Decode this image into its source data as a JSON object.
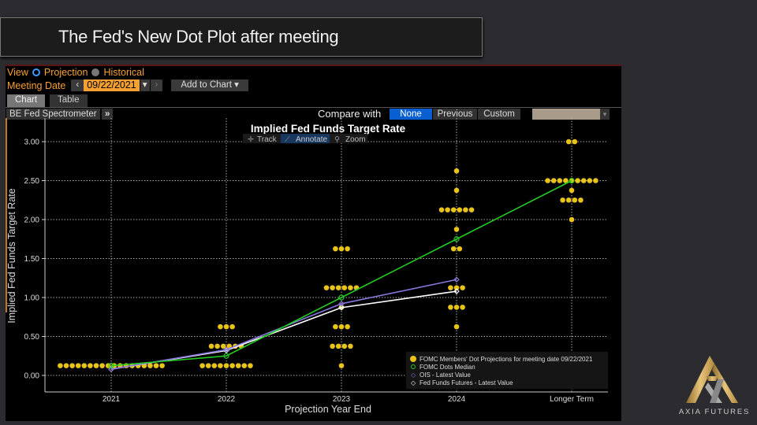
{
  "slide": {
    "title": "The Fed's New Dot Plot after meeting",
    "logo_text": "AXIA FUTURES"
  },
  "toolbar": {
    "view_label": "View",
    "projection_label": "Projection",
    "historical_label": "Historical",
    "meeting_date_label": "Meeting Date",
    "meeting_date": "09/22/2021",
    "prev_icon": "‹",
    "next_icon": "›",
    "dropdown_icon": "▾",
    "add_to_chart": "Add to Chart ▾",
    "tabs": [
      "Chart",
      "Table"
    ],
    "source": "BE Fed Spectrometer",
    "expand_icon": "»",
    "compare_label": "Compare with",
    "compare_options": [
      "None",
      "Previous",
      "Custom"
    ],
    "compare_selected": "None"
  },
  "chart_tools": {
    "track": "Track",
    "annotate": "Annotate",
    "zoom": "Zoom"
  },
  "colors": {
    "dots": "#e8c31a",
    "median": "#22cc22",
    "ois": "#8877dd",
    "fff": "#ffffff",
    "accent": "#f5a030"
  },
  "chart_data": {
    "type": "scatter",
    "title": "Implied Fed Funds Target Rate",
    "xlabel": "Projection Year End",
    "ylabel": "Implied Fed Funds Target Rate",
    "categories": [
      "2021",
      "2022",
      "2023",
      "2024",
      "Longer Term"
    ],
    "ylim": [
      -0.25,
      3.3
    ],
    "yticks": [
      "0.00",
      "0.50",
      "1.00",
      "1.50",
      "2.00",
      "2.50",
      "3.00"
    ],
    "ytick_values": [
      0,
      0.5,
      1,
      1.5,
      2,
      2.5,
      3
    ],
    "grid": true,
    "dots": [
      [
        {
          "rate": 0.125,
          "count": 18
        }
      ],
      [
        {
          "rate": 0.125,
          "count": 9
        },
        {
          "rate": 0.375,
          "count": 6
        },
        {
          "rate": 0.625,
          "count": 3
        }
      ],
      [
        {
          "rate": 0.125,
          "count": 1
        },
        {
          "rate": 0.375,
          "count": 4
        },
        {
          "rate": 0.625,
          "count": 3
        },
        {
          "rate": 0.875,
          "count": 1
        },
        {
          "rate": 1.125,
          "count": 6
        },
        {
          "rate": 1.625,
          "count": 3
        }
      ],
      [
        {
          "rate": 0.625,
          "count": 1
        },
        {
          "rate": 0.875,
          "count": 3
        },
        {
          "rate": 1.125,
          "count": 3
        },
        {
          "rate": 1.625,
          "count": 2
        },
        {
          "rate": 1.875,
          "count": 1
        },
        {
          "rate": 2.125,
          "count": 6
        },
        {
          "rate": 2.375,
          "count": 1
        },
        {
          "rate": 2.625,
          "count": 1
        }
      ],
      [
        {
          "rate": 2.0,
          "count": 1
        },
        {
          "rate": 2.25,
          "count": 4
        },
        {
          "rate": 2.375,
          "count": 1
        },
        {
          "rate": 2.5,
          "count": 9
        },
        {
          "rate": 3.0,
          "count": 2
        }
      ]
    ],
    "series": [
      {
        "name": "FOMC Dots Median",
        "values": [
          0.125,
          0.25,
          1.0,
          1.75,
          2.5
        ]
      },
      {
        "name": "OIS - Latest Value",
        "values": [
          0.08,
          0.33,
          0.92,
          1.23,
          null
        ]
      },
      {
        "name": "Fed Funds Futures - Latest Value",
        "values": [
          0.08,
          0.32,
          0.87,
          1.08,
          null
        ]
      }
    ],
    "legend": [
      "FOMC Members' Dot Projections for meeting date 09/22/2021",
      "FOMC Dots Median",
      "OIS - Latest Value",
      "Fed Funds Futures - Latest Value"
    ],
    "legend_position": "bottom-right"
  }
}
